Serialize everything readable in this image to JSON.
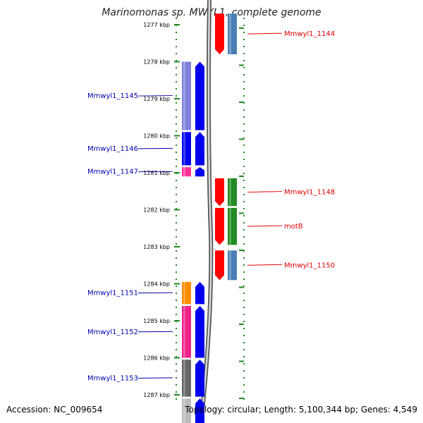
{
  "title": "Marinomonas sp. MWYL1, complete genome",
  "footer": {
    "accession": "Accession: NC_009654",
    "summary": "Topology: circular; Length: 5,100,344 bp; Genes: 4,549"
  },
  "scale": {
    "unit": "kbp",
    "ticks": [
      {
        "label": "1277 kbp",
        "value": 1277
      },
      {
        "label": "1278 kbp",
        "value": 1278
      },
      {
        "label": "1279 kbp",
        "value": 1279
      },
      {
        "label": "1280 kbp",
        "value": 1280
      },
      {
        "label": "1281 kbp",
        "value": 1281
      },
      {
        "label": "1282 kbp",
        "value": 1282
      },
      {
        "label": "1283 kbp",
        "value": 1283
      },
      {
        "label": "1284 kbp",
        "value": 1284
      },
      {
        "label": "1285 kbp",
        "value": 1285
      },
      {
        "label": "1286 kbp",
        "value": 1286
      },
      {
        "label": "1287 kbp",
        "value": 1287
      }
    ]
  },
  "colors": {
    "reverse_label": "#0000aa",
    "forward_label": "#dd0000",
    "tick": "#1e8a1e",
    "backbone": "#777777"
  },
  "genes": [
    {
      "name": "Mmwyl1_1144",
      "strand": "forward",
      "start": 1276.7,
      "end": 1277.8,
      "cog_color": "#4a7fb5"
    },
    {
      "name": "Mmwyl1_1145",
      "strand": "reverse",
      "start": 1278.0,
      "end": 1279.85,
      "cog_color": "#8080dd"
    },
    {
      "name": "Mmwyl1_1146",
      "strand": "reverse",
      "start": 1279.9,
      "end": 1280.8,
      "cog_color": "#0000ee"
    },
    {
      "name": "Mmwyl1_1147",
      "strand": "reverse",
      "start": 1280.85,
      "end": 1281.1,
      "cog_color": "#ff3399"
    },
    {
      "name": "Mmwyl1_1148",
      "strand": "forward",
      "start": 1281.15,
      "end": 1281.9,
      "cog_color": "#228b22"
    },
    {
      "name": "motB",
      "strand": "forward",
      "start": 1281.95,
      "end": 1282.95,
      "cog_color": "#228b22"
    },
    {
      "name": "Mmwyl1_1150",
      "strand": "forward",
      "start": 1283.1,
      "end": 1283.9,
      "cog_color": "#4a7fb5"
    },
    {
      "name": "Mmwyl1_1151",
      "strand": "reverse",
      "start": 1283.95,
      "end": 1284.55,
      "cog_color": "#ff8c00"
    },
    {
      "name": "Mmwyl1_1152",
      "strand": "reverse",
      "start": 1284.6,
      "end": 1286.0,
      "cog_color": "#ee2288"
    },
    {
      "name": "Mmwyl1_1153",
      "strand": "reverse",
      "start": 1286.05,
      "end": 1287.05,
      "cog_color": "#666666"
    },
    {
      "name": "",
      "strand": "reverse",
      "start": 1287.1,
      "end": 1287.8,
      "cog_color": "#bbbbbb"
    }
  ]
}
